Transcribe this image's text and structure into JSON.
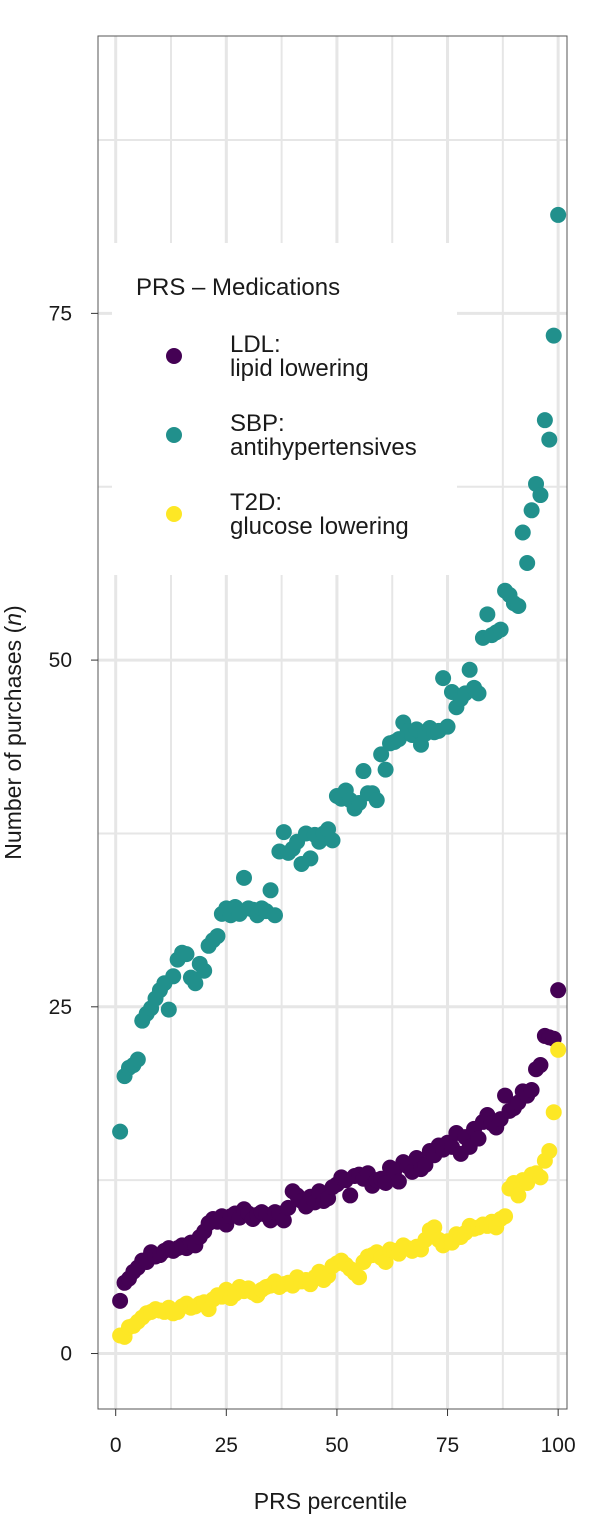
{
  "chart_data": {
    "type": "scatter",
    "title": "",
    "xlabel": "PRS percentile",
    "ylabel": "Number of purchases (n)",
    "ylabel_main": "Number of purchases (",
    "ylabel_italic": "n",
    "ylabel_tail": ")",
    "xlim": [
      -4,
      102
    ],
    "ylim": [
      -4,
      95
    ],
    "xticks": [
      0,
      25,
      50,
      75,
      100
    ],
    "yticks": [
      0,
      25,
      50,
      75
    ],
    "grid": true,
    "legend": {
      "title": "PRS – Medications",
      "placement": "top-left",
      "entries": [
        {
          "line1": "LDL:",
          "line2": "lipid lowering",
          "color": "#440154"
        },
        {
          "line1": "SBP:",
          "line2": "antihypertensives",
          "color": "#21908C"
        },
        {
          "line1": "T2D:",
          "line2": "glucose lowering",
          "color": "#FDE725"
        }
      ]
    },
    "series": [
      {
        "name": "LDL: lipid lowering",
        "color": "#440154",
        "x": [
          1,
          2,
          3,
          4,
          5,
          6,
          7,
          8,
          9,
          10,
          11,
          12,
          13,
          14,
          15,
          16,
          17,
          18,
          19,
          20,
          21,
          22,
          23,
          24,
          25,
          26,
          27,
          28,
          29,
          30,
          31,
          32,
          33,
          34,
          35,
          36,
          37,
          38,
          39,
          40,
          41,
          42,
          43,
          44,
          45,
          46,
          47,
          48,
          49,
          50,
          51,
          52,
          53,
          54,
          55,
          56,
          57,
          58,
          59,
          60,
          61,
          62,
          63,
          64,
          65,
          66,
          67,
          68,
          69,
          70,
          71,
          72,
          73,
          74,
          75,
          76,
          77,
          78,
          79,
          80,
          81,
          82,
          83,
          84,
          85,
          86,
          87,
          88,
          89,
          90,
          91,
          92,
          93,
          94,
          95,
          96,
          97,
          98,
          99,
          100
        ],
        "y": [
          3.8,
          5.1,
          5.4,
          5.9,
          6.2,
          6.7,
          6.6,
          7.3,
          7.0,
          7.1,
          7.4,
          7.6,
          7.4,
          7.6,
          7.8,
          7.6,
          8.0,
          7.8,
          8.4,
          8.8,
          9.4,
          9.7,
          9.5,
          9.9,
          9.3,
          9.9,
          10.1,
          9.8,
          10.4,
          10.1,
          9.7,
          10.0,
          10.2,
          10.0,
          9.6,
          10.2,
          10.1,
          9.6,
          10.5,
          11.7,
          11.4,
          11.0,
          10.6,
          11.3,
          10.9,
          11.7,
          11.0,
          11.2,
          12.0,
          12.2,
          12.7,
          12.5,
          11.4,
          12.8,
          12.9,
          12.6,
          13.0,
          12.1,
          12.5,
          12.6,
          12.3,
          13.4,
          13.2,
          12.4,
          13.8,
          13.5,
          13.1,
          14.1,
          13.3,
          13.6,
          14.6,
          14.3,
          15.0,
          14.7,
          15.2,
          14.9,
          15.9,
          14.4,
          15.6,
          14.9,
          16.2,
          15.5,
          16.7,
          17.2,
          16.6,
          16.3,
          16.9,
          18.6,
          17.5,
          17.7,
          18.1,
          18.9,
          18.6,
          19.0,
          20.5,
          20.8,
          22.9,
          22.8,
          22.7,
          26.2
        ]
      },
      {
        "name": "SBP: antihypertensives",
        "color": "#21908C",
        "x": [
          1,
          2,
          3,
          4,
          5,
          6,
          7,
          8,
          9,
          10,
          11,
          12,
          13,
          14,
          15,
          16,
          17,
          18,
          19,
          20,
          21,
          22,
          23,
          24,
          25,
          26,
          27,
          28,
          29,
          30,
          31,
          32,
          33,
          34,
          35,
          36,
          37,
          38,
          39,
          40,
          41,
          42,
          43,
          44,
          45,
          46,
          47,
          48,
          49,
          50,
          51,
          52,
          53,
          54,
          55,
          56,
          57,
          58,
          59,
          60,
          61,
          62,
          63,
          64,
          65,
          66,
          67,
          68,
          69,
          70,
          71,
          72,
          73,
          74,
          75,
          76,
          77,
          78,
          79,
          80,
          81,
          82,
          83,
          84,
          85,
          86,
          87,
          88,
          89,
          90,
          91,
          92,
          93,
          94,
          95,
          96,
          97,
          98,
          99,
          100
        ],
        "y": [
          16.0,
          20.0,
          20.6,
          20.8,
          21.2,
          24.0,
          24.5,
          24.9,
          25.6,
          26.2,
          26.7,
          24.8,
          27.2,
          28.4,
          28.9,
          28.8,
          27.1,
          26.7,
          28.1,
          27.6,
          29.4,
          29.8,
          30.1,
          31.7,
          32.1,
          31.6,
          32.2,
          31.7,
          34.3,
          32.1,
          32.0,
          31.6,
          32.1,
          31.9,
          33.4,
          31.6,
          36.2,
          37.6,
          36.1,
          36.4,
          36.9,
          35.3,
          37.5,
          35.7,
          37.4,
          36.9,
          37.5,
          37.8,
          37.0,
          40.2,
          40.0,
          40.6,
          39.9,
          39.3,
          39.7,
          42.0,
          40.4,
          40.4,
          39.9,
          43.2,
          42.1,
          44.0,
          44.1,
          44.3,
          45.5,
          44.9,
          44.6,
          45.0,
          43.9,
          44.7,
          45.1,
          44.8,
          44.9,
          48.7,
          45.2,
          47.7,
          46.6,
          47.2,
          47.6,
          49.3,
          48.0,
          47.6,
          51.6,
          53.3,
          51.8,
          52.0,
          52.2,
          55.0,
          54.7,
          54.1,
          53.9,
          59.2,
          57.0,
          60.8,
          62.7,
          61.9,
          67.3,
          65.9,
          73.4,
          82.1
        ]
      },
      {
        "name": "T2D: glucose lowering",
        "color": "#FDE725",
        "x": [
          1,
          2,
          3,
          4,
          5,
          6,
          7,
          8,
          9,
          10,
          11,
          12,
          13,
          14,
          15,
          16,
          17,
          18,
          19,
          20,
          21,
          22,
          23,
          24,
          25,
          26,
          27,
          28,
          29,
          30,
          31,
          32,
          33,
          34,
          35,
          36,
          37,
          38,
          39,
          40,
          41,
          42,
          43,
          44,
          45,
          46,
          47,
          48,
          49,
          50,
          51,
          52,
          53,
          54,
          55,
          56,
          57,
          58,
          59,
          60,
          61,
          62,
          63,
          64,
          65,
          66,
          67,
          68,
          69,
          70,
          71,
          72,
          73,
          74,
          75,
          76,
          77,
          78,
          79,
          80,
          81,
          82,
          83,
          84,
          85,
          86,
          87,
          88,
          89,
          90,
          91,
          92,
          93,
          94,
          95,
          96,
          97,
          98,
          99,
          100
        ],
        "y": [
          1.3,
          1.2,
          1.9,
          2.0,
          2.3,
          2.6,
          2.9,
          3.0,
          3.2,
          3.1,
          3.0,
          3.3,
          2.9,
          3.0,
          3.4,
          3.6,
          3.3,
          3.4,
          3.6,
          3.7,
          3.2,
          3.9,
          4.2,
          4.1,
          4.6,
          4.0,
          4.3,
          4.8,
          4.5,
          4.7,
          4.4,
          4.2,
          4.6,
          4.8,
          4.9,
          5.2,
          4.8,
          5.0,
          5.1,
          4.9,
          5.5,
          5.2,
          5.3,
          5.0,
          5.5,
          5.9,
          5.3,
          5.6,
          6.3,
          6.5,
          6.7,
          6.4,
          6.1,
          5.8,
          5.5,
          6.6,
          7.0,
          7.1,
          7.3,
          6.9,
          6.6,
          7.5,
          7.4,
          7.2,
          7.8,
          7.6,
          7.4,
          7.7,
          7.5,
          8.2,
          8.9,
          9.1,
          8.2,
          7.8,
          8.1,
          8.0,
          8.6,
          8.4,
          8.7,
          9.2,
          9.0,
          9.1,
          9.3,
          9.2,
          9.5,
          9.1,
          9.7,
          9.9,
          11.9,
          12.3,
          11.4,
          12.5,
          12.3,
          12.9,
          13.0,
          12.7,
          13.9,
          14.6,
          17.4,
          21.9
        ]
      }
    ]
  }
}
